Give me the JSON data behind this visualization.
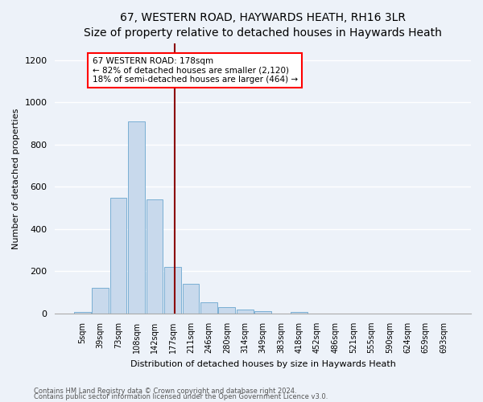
{
  "title": "67, WESTERN ROAD, HAYWARDS HEATH, RH16 3LR",
  "subtitle": "Size of property relative to detached houses in Haywards Heath",
  "xlabel": "Distribution of detached houses by size in Haywards Heath",
  "ylabel": "Number of detached properties",
  "footer_line1": "Contains HM Land Registry data © Crown copyright and database right 2024.",
  "footer_line2": "Contains public sector information licensed under the Open Government Licence v3.0.",
  "bar_labels": [
    "5sqm",
    "39sqm",
    "73sqm",
    "108sqm",
    "142sqm",
    "177sqm",
    "211sqm",
    "246sqm",
    "280sqm",
    "314sqm",
    "349sqm",
    "383sqm",
    "418sqm",
    "452sqm",
    "486sqm",
    "521sqm",
    "555sqm",
    "590sqm",
    "624sqm",
    "659sqm",
    "693sqm"
  ],
  "bar_values": [
    8,
    120,
    550,
    910,
    540,
    220,
    140,
    55,
    32,
    20,
    10,
    0,
    8,
    0,
    0,
    0,
    0,
    0,
    0,
    0,
    0
  ],
  "bar_color": "#c8d9ec",
  "bar_edgecolor": "#7aafd4",
  "annotation_text": "67 WESTERN ROAD: 178sqm\n← 82% of detached houses are smaller (2,120)\n18% of semi-detached houses are larger (464) →",
  "vline_x_index": 5.1,
  "ylim": [
    0,
    1280
  ],
  "yticks": [
    0,
    200,
    400,
    600,
    800,
    1000,
    1200
  ],
  "bg_color": "#edf2f9",
  "grid_color": "#ffffff",
  "title_fontsize": 10,
  "subtitle_fontsize": 9,
  "ylabel_fontsize": 8,
  "xlabel_fontsize": 8,
  "tick_fontsize": 7,
  "footer_fontsize": 6
}
